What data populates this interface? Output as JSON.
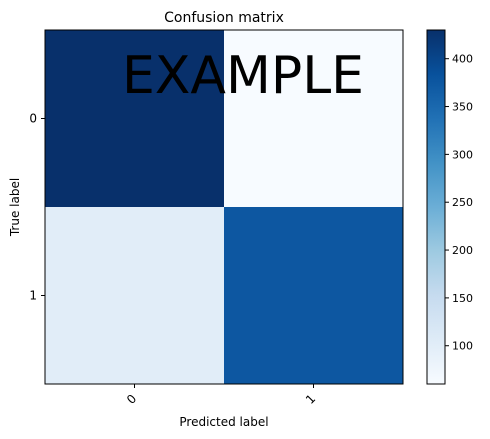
{
  "chart_data": {
    "type": "heatmap",
    "title": "Confusion matrix",
    "xlabel": "Predicted label",
    "ylabel": "True label",
    "x_tick_labels": [
      "0",
      "1"
    ],
    "y_tick_labels": [
      "0",
      "1"
    ],
    "matrix": [
      [
        430,
        60
      ],
      [
        100,
        375
      ]
    ],
    "colormap": "Blues",
    "colorbar": {
      "range": [
        60,
        430
      ],
      "ticks": [
        100,
        150,
        200,
        250,
        300,
        350,
        400
      ]
    },
    "watermark": "EXAMPLE",
    "grid": false
  }
}
